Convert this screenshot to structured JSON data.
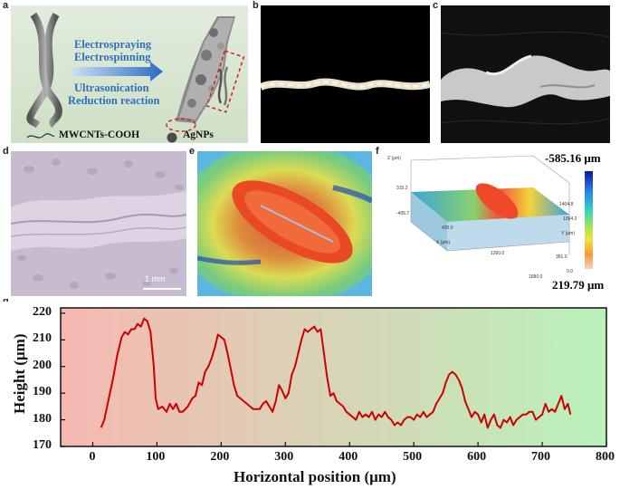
{
  "figure": {
    "panel_labels": [
      "a",
      "b",
      "c",
      "d",
      "e",
      "f",
      "g"
    ]
  },
  "panel_a": {
    "process_line1": "Electrospraying",
    "process_line2": "Electrospinning",
    "process_line3": "Ultrasonication",
    "process_line4": "Reduction reaction",
    "legend_cnt": "MWCNTs-COOH",
    "legend_ag": "AgNPs",
    "text_color": "#2f6fbf"
  },
  "panel_d": {
    "scale_bar": "1 mm"
  },
  "panel_f": {
    "z_axis": "Z (μm)",
    "x_axis": "X (μm)",
    "y_axis": "Y (μm)",
    "ticks": [
      "315.2",
      "-405.7",
      "420.0",
      "1260.0",
      "1680.0",
      "1404.8",
      "1054.3",
      "351.0",
      "0.0"
    ],
    "colorbar_max": "-585.16 μm",
    "colorbar_min": "219.79 μm"
  },
  "chart_data": {
    "type": "line",
    "title": "",
    "xlabel": "Horizontal position (μm)",
    "ylabel": "Height (μm)",
    "xlim": [
      -50,
      800
    ],
    "ylim": [
      170,
      222
    ],
    "xticks": [
      0,
      100,
      200,
      300,
      400,
      500,
      600,
      700,
      800
    ],
    "yticks": [
      170,
      180,
      190,
      200,
      210,
      220
    ],
    "grid": false,
    "background_gradient": [
      "#f7b8b0",
      "#b8f0b8"
    ],
    "line_color": "#cc0000",
    "series": [
      {
        "x": [
          13,
          18,
          25,
          32,
          38,
          45,
          50,
          55,
          60,
          65,
          70,
          75,
          80,
          85,
          90,
          95,
          98,
          102,
          108,
          115,
          120,
          125,
          130,
          135,
          140,
          148,
          155,
          160,
          165,
          170,
          175,
          180,
          185,
          190,
          195,
          200,
          205,
          210,
          215,
          220,
          225,
          230,
          235,
          240,
          245,
          250,
          255,
          260,
          265,
          270,
          275,
          280,
          285,
          290,
          295,
          300,
          305,
          310,
          315,
          320,
          325,
          330,
          335,
          340,
          345,
          350,
          355,
          360,
          365,
          370,
          375,
          380,
          385,
          390,
          395,
          400,
          405,
          410,
          415,
          420,
          425,
          430,
          435,
          440,
          445,
          450,
          455,
          460,
          465,
          470,
          475,
          480,
          485,
          490,
          495,
          500,
          505,
          510,
          515,
          520,
          525,
          530,
          535,
          540,
          545,
          550,
          555,
          560,
          565,
          570,
          575,
          580,
          585,
          590,
          595,
          600,
          605,
          610,
          615,
          620,
          625,
          630,
          635,
          640,
          645,
          650,
          655,
          660,
          665,
          670,
          675,
          680,
          685,
          690,
          695,
          700,
          705,
          710,
          715,
          720,
          725,
          730,
          735,
          740,
          744
        ],
        "y": [
          177,
          180,
          188,
          196,
          204,
          211,
          213,
          212,
          214,
          214,
          216,
          215,
          218,
          217,
          213,
          200,
          188,
          184,
          185,
          183,
          186,
          184,
          186,
          183,
          183,
          185,
          188,
          189,
          194,
          193,
          198,
          200,
          203,
          207,
          212,
          211,
          210,
          205,
          199,
          193,
          189,
          188,
          187,
          186,
          185,
          184,
          184,
          184,
          186,
          187,
          185,
          183,
          187,
          193,
          191,
          188,
          190,
          197,
          200,
          205,
          210,
          214,
          213,
          214,
          215,
          213,
          214,
          205,
          196,
          189,
          190,
          187,
          186,
          185,
          183,
          182,
          181,
          180,
          183,
          181,
          182,
          181,
          183,
          180,
          182,
          181,
          183,
          181,
          180,
          178,
          179,
          178,
          180,
          181,
          181,
          180,
          182,
          181,
          183,
          181,
          182,
          183,
          186,
          188,
          190,
          194,
          197,
          198,
          197,
          195,
          192,
          187,
          184,
          181,
          183,
          182,
          179,
          182,
          177,
          180,
          182,
          178,
          177,
          180,
          179,
          181,
          178,
          180,
          181,
          182,
          182,
          183,
          183,
          180,
          181,
          182,
          186,
          183,
          184,
          183,
          186,
          189,
          184,
          186,
          182
        ]
      }
    ]
  }
}
